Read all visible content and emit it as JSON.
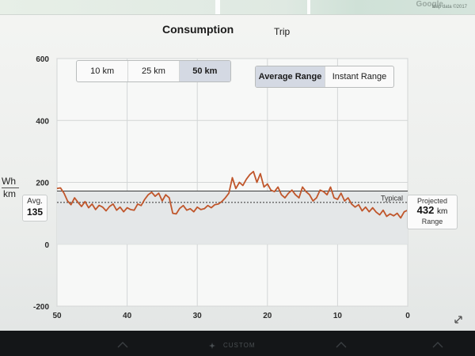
{
  "map": {
    "credit": "Map data ©2017",
    "logo_text": "Google"
  },
  "tabs": {
    "consumption": "Consumption",
    "trip": "Trip"
  },
  "distance_selector": {
    "options": [
      "10 km",
      "25 km",
      "50 km"
    ],
    "selected": "50 km"
  },
  "range_selector": {
    "options": [
      "Average Range",
      "Instant Range"
    ],
    "selected": "Average Range"
  },
  "units": {
    "numerator": "Wh",
    "denominator": "km"
  },
  "average": {
    "label": "Avg.",
    "value": "135"
  },
  "projected": {
    "label": "Projected",
    "value": "432",
    "unit": "km",
    "sub": "Range"
  },
  "typical_label": "Typical",
  "bottom": {
    "label": "CUSTOM"
  },
  "colors": {
    "line": "#c0562b",
    "accent_select": "#d4d9e3",
    "typical_line": "#3a3a3a"
  },
  "chart_data": {
    "type": "line",
    "title": "",
    "xlabel": "",
    "ylabel": "Wh/km",
    "xlim": [
      50,
      0
    ],
    "ylim": [
      -200,
      600
    ],
    "x_ticks": [
      50,
      40,
      30,
      20,
      10,
      0
    ],
    "y_ticks": [
      600,
      400,
      200,
      0,
      -200
    ],
    "average_value": 135,
    "typical_value": 172,
    "series": [
      {
        "x": [
          50,
          49.5,
          49,
          48.5,
          48,
          47.5,
          47,
          46.5,
          46,
          45.5,
          45,
          44.5,
          44,
          43.5,
          43,
          42.5,
          42,
          41.5,
          41,
          40.5,
          40,
          39.5,
          39,
          38.5,
          38,
          37.5,
          37,
          36.5,
          36,
          35.5,
          35,
          34.5,
          34,
          33.5,
          33,
          32.5,
          32,
          31.5,
          31,
          30.5,
          30,
          29.5,
          29,
          28.5,
          28,
          27.5,
          27,
          26.5,
          26,
          25.5,
          25,
          24.5,
          24,
          23.5,
          23,
          22.5,
          22,
          21.5,
          21,
          20.5,
          20,
          19.5,
          19,
          18.5,
          18,
          17.5,
          17,
          16.5,
          16,
          15.5,
          15,
          14.5,
          14,
          13.5,
          13,
          12.5,
          12,
          11.5,
          11,
          10.5,
          10,
          9.5,
          9,
          8.5,
          8,
          7.5,
          7,
          6.5,
          6,
          5.5,
          5,
          4.5,
          4,
          3.5,
          3,
          2.5,
          2,
          1.5,
          1,
          0.5,
          0
        ],
        "y": [
          180,
          182,
          165,
          140,
          128,
          150,
          135,
          122,
          138,
          118,
          130,
          112,
          126,
          120,
          108,
          122,
          130,
          110,
          120,
          105,
          118,
          112,
          110,
          130,
          125,
          145,
          160,
          168,
          155,
          165,
          140,
          160,
          150,
          100,
          98,
          116,
          125,
          110,
          115,
          105,
          120,
          112,
          115,
          125,
          118,
          128,
          130,
          138,
          150,
          165,
          215,
          180,
          200,
          190,
          210,
          225,
          235,
          200,
          228,
          185,
          195,
          175,
          170,
          185,
          160,
          150,
          165,
          175,
          160,
          150,
          185,
          170,
          160,
          140,
          150,
          175,
          170,
          160,
          185,
          150,
          145,
          165,
          140,
          150,
          130,
          120,
          128,
          108,
          120,
          105,
          118,
          104,
          95,
          110,
          90,
          98,
          92,
          100,
          85,
          105,
          110
        ]
      }
    ]
  }
}
